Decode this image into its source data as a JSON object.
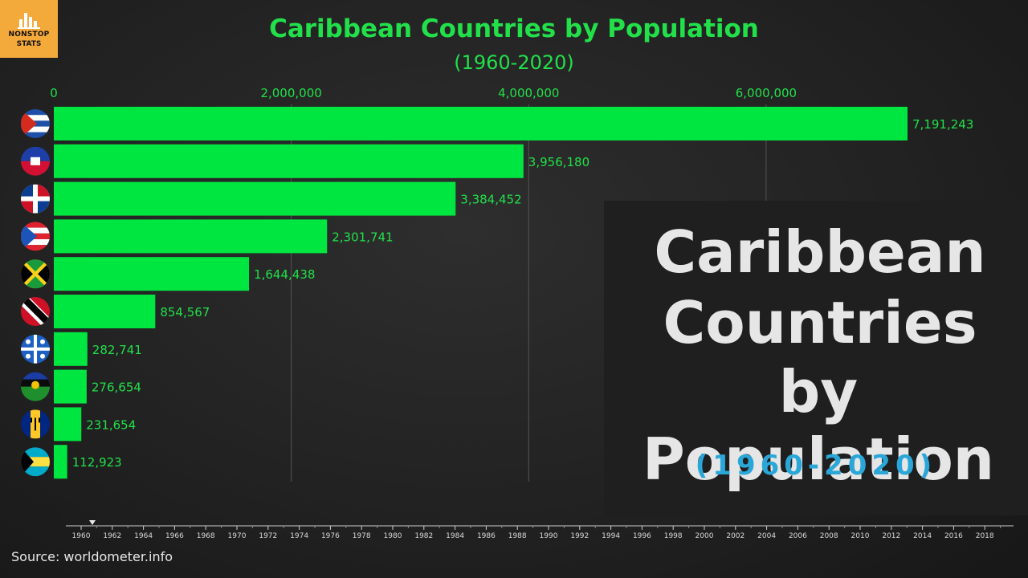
{
  "logo": {
    "line1": "NONSTOP",
    "line2": "STATS"
  },
  "header": {
    "title": "Caribbean Countries by Population",
    "subtitle": "(1960-2020)"
  },
  "overlay": {
    "line1": "Caribbean",
    "line2": "Countries",
    "line3": "by Population",
    "years": "(1960-2020)"
  },
  "source": "Source: worldometer.info",
  "colors": {
    "bar": "#00e640",
    "text": "#22e04a",
    "overlay_text": "#e6e6e6",
    "overlay_years": "#2aa7d8",
    "logo_bg": "#f4a93b"
  },
  "chart_data": {
    "type": "bar",
    "orientation": "horizontal",
    "x_ticks": [
      0,
      2000000,
      4000000,
      6000000
    ],
    "x_tick_labels": [
      "0",
      "2,000,000",
      "4,000,000",
      "6,000,000"
    ],
    "xlim": [
      0,
      7200000
    ],
    "values": [
      7191243,
      3956180,
      3384452,
      2301741,
      1644438,
      854567,
      282741,
      276654,
      231654,
      112923
    ],
    "value_labels": [
      "7,191,243",
      "3,956,180",
      "3,384,452",
      "2,301,741",
      "1,644,438",
      "854,567",
      "282,741",
      "276,654",
      "231,654",
      "112,923"
    ],
    "flag_icons": [
      "cuba-flag-icon",
      "haiti-flag-icon",
      "dominican-republic-flag-icon",
      "puerto-rico-flag-icon",
      "jamaica-flag-icon",
      "trinidad-and-tobago-flag-icon",
      "martinique-flag-icon",
      "guadeloupe-flag-icon",
      "barbados-flag-icon",
      "bahamas-flag-icon"
    ],
    "timeline": {
      "years": [
        "1960",
        "1962",
        "1964",
        "1966",
        "1968",
        "1970",
        "1972",
        "1974",
        "1976",
        "1978",
        "1980",
        "1982",
        "1984",
        "1986",
        "1988",
        "1990",
        "1992",
        "1994",
        "1996",
        "1998",
        "2000",
        "2002",
        "2004",
        "2006",
        "2008",
        "2010",
        "2012",
        "2014",
        "2016",
        "2018"
      ],
      "current_year": 1960
    }
  }
}
